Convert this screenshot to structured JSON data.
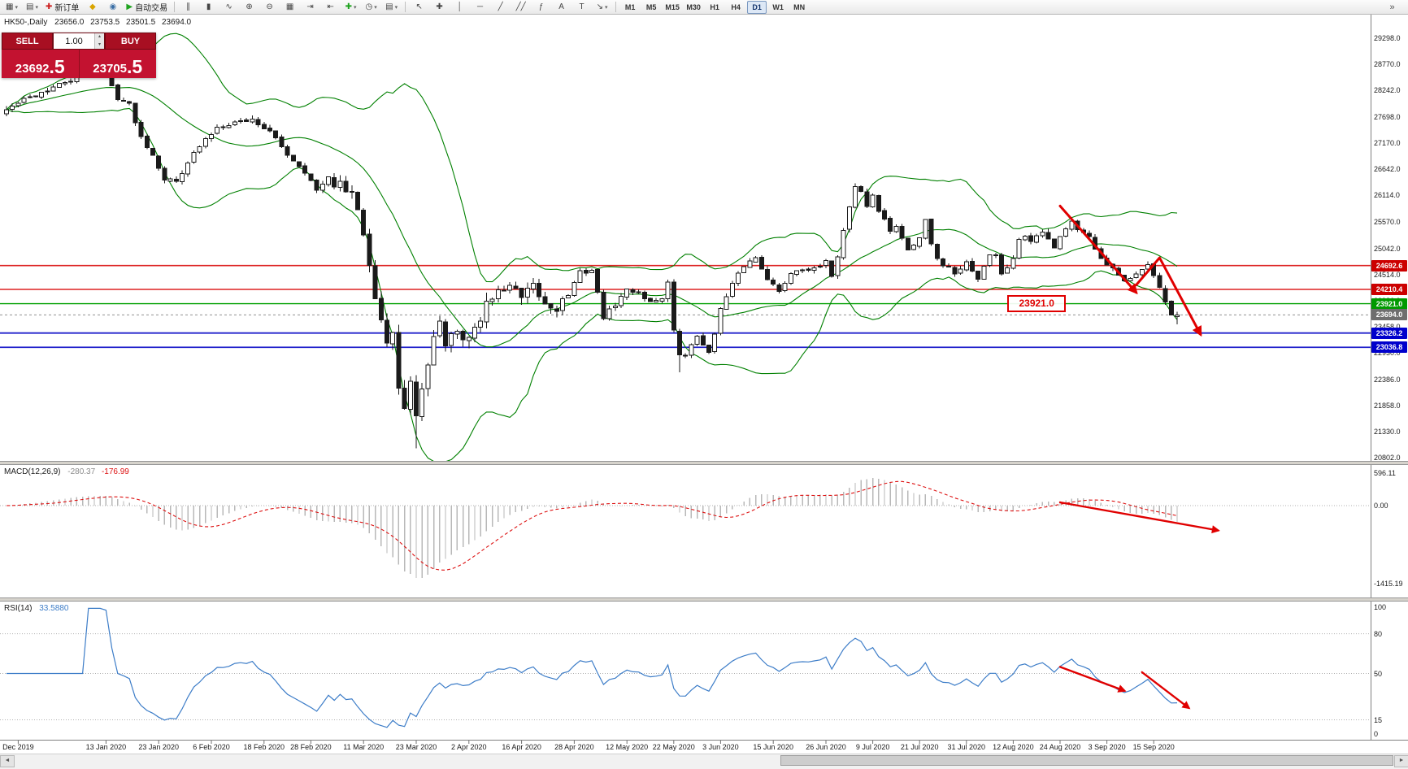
{
  "toolbar": {
    "groups": [
      {
        "name": "file-group",
        "items": [
          {
            "name": "new-chart-button",
            "glyph": "▦",
            "caret": true
          },
          {
            "name": "chart-profiles-button",
            "glyph": "▤",
            "caret": true
          },
          {
            "name": "new-order-button",
            "glyph": "✚",
            "glyph_color": "#cc2222",
            "label": "新订单"
          },
          {
            "name": "metaeditor-button",
            "glyph": "◆",
            "glyph_color": "#d9a400"
          },
          {
            "name": "data-window-button",
            "glyph": "◉",
            "glyph_color": "#3a6ea5"
          },
          {
            "name": "autotrading-button",
            "glyph": "▶",
            "glyph_color": "#1fa31f",
            "label": "自动交易"
          }
        ]
      },
      {
        "name": "chart-tools-group",
        "items": [
          {
            "name": "bar-chart-button",
            "glyph": "∥"
          },
          {
            "name": "candlestick-chart-button",
            "glyph": "▮"
          },
          {
            "name": "line-chart-button",
            "glyph": "∿"
          },
          {
            "name": "zoom-in-button",
            "glyph": "⊕"
          },
          {
            "name": "zoom-out-button",
            "glyph": "⊖"
          },
          {
            "name": "tile-windows-button",
            "glyph": "▦"
          },
          {
            "name": "auto-scroll-button",
            "glyph": "⇥"
          },
          {
            "name": "chart-shift-button",
            "glyph": "⇤"
          },
          {
            "name": "indicators-button",
            "glyph": "✚",
            "glyph_color": "#1fa31f",
            "caret": true
          },
          {
            "name": "periods-button",
            "glyph": "◷",
            "caret": true
          },
          {
            "name": "templates-button",
            "glyph": "▤",
            "caret": true
          }
        ]
      },
      {
        "name": "drawing-tools-group",
        "items": [
          {
            "name": "cursor-button",
            "glyph": "↖"
          },
          {
            "name": "crosshair-button",
            "glyph": "✚"
          },
          {
            "name": "vertical-line-button",
            "glyph": "│"
          },
          {
            "name": "horizontal-line-button",
            "glyph": "─"
          },
          {
            "name": "trendline-button",
            "glyph": "╱"
          },
          {
            "name": "channel-button",
            "glyph": "╱╱"
          },
          {
            "name": "fibonacci-button",
            "glyph": "ƒ"
          },
          {
            "name": "text-button",
            "glyph": "A"
          },
          {
            "name": "label-button",
            "glyph": "T"
          },
          {
            "name": "arrows-button",
            "glyph": "↘",
            "caret": true
          }
        ]
      },
      {
        "name": "timeframes-group",
        "items": [
          {
            "name": "timeframe-m1",
            "label": "M1"
          },
          {
            "name": "timeframe-m5",
            "label": "M5"
          },
          {
            "name": "timeframe-m15",
            "label": "M15"
          },
          {
            "name": "timeframe-m30",
            "label": "M30"
          },
          {
            "name": "timeframe-h1",
            "label": "H1"
          },
          {
            "name": "timeframe-h4",
            "label": "H4"
          },
          {
            "name": "timeframe-d1",
            "label": "D1",
            "active": true
          },
          {
            "name": "timeframe-w1",
            "label": "W1"
          },
          {
            "name": "timeframe-mn",
            "label": "MN"
          }
        ]
      }
    ],
    "overflow_glyph": "»"
  },
  "header": {
    "symbol_period": "HK50-,Daily",
    "open": "23656.0",
    "high": "23753.5",
    "low": "23501.5",
    "close": "23694.0"
  },
  "trade_panel": {
    "sell_label": "SELL",
    "buy_label": "BUY",
    "volume": "1.00",
    "sell_price_main": "23692",
    "sell_price_frac": ".5",
    "buy_price_main": "23705",
    "buy_price_frac": ".5"
  },
  "macd_header": {
    "title": "MACD(12,26,9)",
    "main": "-280.37",
    "signal": "-176.99"
  },
  "rsi_header": {
    "title": "RSI(14)",
    "value": "33.5880"
  },
  "chart_data": {
    "type": "candlestick",
    "symbol": "HK50-",
    "period": "Daily",
    "last_ohlc": {
      "open": 23656.0,
      "high": 23753.5,
      "low": 23501.5,
      "close": 23694.0
    },
    "bid": 23692.5,
    "ask": 23705.5,
    "y_axis": {
      "top": 29298.0,
      "bottom": 20802.0,
      "labels": [
        "29298.0",
        "28770.0",
        "28242.0",
        "27698.0",
        "27170.0",
        "26642.0",
        "26114.0",
        "25570.0",
        "25042.0",
        "24514.0",
        "23986.0",
        "23458.0",
        "22930.0",
        "22386.0",
        "21858.0",
        "21330.0",
        "20802.0"
      ]
    },
    "x_axis": [
      [
        "Dec 2019",
        2
      ],
      [
        "13 Jan 2020",
        17
      ],
      [
        "23 Jan 2020",
        26
      ],
      [
        "6 Feb 2020",
        35
      ],
      [
        "18 Feb 2020",
        44
      ],
      [
        "28 Feb 2020",
        52
      ],
      [
        "11 Mar 2020",
        61
      ],
      [
        "23 Mar 2020",
        70
      ],
      [
        "2 Apr 2020",
        79
      ],
      [
        "16 Apr 2020",
        88
      ],
      [
        "28 Apr 2020",
        97
      ],
      [
        "12 May 2020",
        106
      ],
      [
        "22 May 2020",
        114
      ],
      [
        "3 Jun 2020",
        122
      ],
      [
        "15 Jun 2020",
        131
      ],
      [
        "26 Jun 2020",
        140
      ],
      [
        "9 Jul 2020",
        148
      ],
      [
        "21 Jul 2020",
        156
      ],
      [
        "31 Jul 2020",
        164
      ],
      [
        "12 Aug 2020",
        172
      ],
      [
        "24 Aug 2020",
        180
      ],
      [
        "3 Sep 2020",
        188
      ],
      [
        "15 Sep 2020",
        196
      ]
    ],
    "close_anchors": [
      [
        0,
        27850
      ],
      [
        3,
        28050
      ],
      [
        6,
        28200
      ],
      [
        9,
        28350
      ],
      [
        12,
        28500
      ],
      [
        15,
        28600
      ],
      [
        17,
        28550
      ],
      [
        19,
        28100
      ],
      [
        21,
        27950
      ],
      [
        23,
        27300
      ],
      [
        25,
        26950
      ],
      [
        27,
        26450
      ],
      [
        29,
        26400
      ],
      [
        31,
        26800
      ],
      [
        33,
        27100
      ],
      [
        36,
        27500
      ],
      [
        39,
        27600
      ],
      [
        42,
        27650
      ],
      [
        45,
        27400
      ],
      [
        48,
        26950
      ],
      [
        51,
        26600
      ],
      [
        53,
        26200
      ],
      [
        55,
        26450
      ],
      [
        57,
        26300
      ],
      [
        59,
        26100
      ],
      [
        60,
        25900
      ],
      [
        61,
        25400
      ],
      [
        62,
        24800
      ],
      [
        63,
        24050
      ],
      [
        64,
        23600
      ],
      [
        65,
        23100
      ],
      [
        66,
        23250
      ],
      [
        67,
        22300
      ],
      [
        68,
        21750
      ],
      [
        69,
        22250
      ],
      [
        70,
        21700
      ],
      [
        71,
        22150
      ],
      [
        72,
        22750
      ],
      [
        73,
        23250
      ],
      [
        74,
        23500
      ],
      [
        75,
        23150
      ],
      [
        76,
        23200
      ],
      [
        77,
        23350
      ],
      [
        78,
        23100
      ],
      [
        79,
        23250
      ],
      [
        81,
        23600
      ],
      [
        82,
        23950
      ],
      [
        84,
        24150
      ],
      [
        86,
        24300
      ],
      [
        88,
        24000
      ],
      [
        90,
        24250
      ],
      [
        92,
        23900
      ],
      [
        94,
        23850
      ],
      [
        96,
        24100
      ],
      [
        98,
        24550
      ],
      [
        100,
        24600
      ],
      [
        102,
        23650
      ],
      [
        104,
        23900
      ],
      [
        106,
        24200
      ],
      [
        108,
        24150
      ],
      [
        110,
        23950
      ],
      [
        112,
        24050
      ],
      [
        113,
        24350
      ],
      [
        114,
        23350
      ],
      [
        115,
        22900
      ],
      [
        116,
        22850
      ],
      [
        117,
        23100
      ],
      [
        118,
        23300
      ],
      [
        119,
        23050
      ],
      [
        120,
        22950
      ],
      [
        121,
        23350
      ],
      [
        122,
        23800
      ],
      [
        124,
        24300
      ],
      [
        126,
        24700
      ],
      [
        128,
        24850
      ],
      [
        130,
        24450
      ],
      [
        131,
        24300
      ],
      [
        132,
        24150
      ],
      [
        134,
        24550
      ],
      [
        136,
        24650
      ],
      [
        138,
        24600
      ],
      [
        140,
        24750
      ],
      [
        141,
        24500
      ],
      [
        142,
        24900
      ],
      [
        143,
        25400
      ],
      [
        144,
        25900
      ],
      [
        145,
        26300
      ],
      [
        146,
        26200
      ],
      [
        147,
        25900
      ],
      [
        148,
        26100
      ],
      [
        149,
        25800
      ],
      [
        150,
        25650
      ],
      [
        151,
        25350
      ],
      [
        152,
        25500
      ],
      [
        153,
        25250
      ],
      [
        154,
        25000
      ],
      [
        155,
        25100
      ],
      [
        156,
        25250
      ],
      [
        157,
        25650
      ],
      [
        158,
        25150
      ],
      [
        159,
        24850
      ],
      [
        160,
        24700
      ],
      [
        161,
        24650
      ],
      [
        162,
        24550
      ],
      [
        163,
        24650
      ],
      [
        164,
        24750
      ],
      [
        165,
        24600
      ],
      [
        166,
        24450
      ],
      [
        167,
        24700
      ],
      [
        168,
        24950
      ],
      [
        169,
        24900
      ],
      [
        170,
        24550
      ],
      [
        171,
        24650
      ],
      [
        172,
        24850
      ],
      [
        173,
        25200
      ],
      [
        174,
        25250
      ],
      [
        175,
        25150
      ],
      [
        176,
        25300
      ],
      [
        177,
        25400
      ],
      [
        178,
        25200
      ],
      [
        179,
        25050
      ],
      [
        180,
        25250
      ],
      [
        181,
        25400
      ],
      [
        182,
        25600
      ],
      [
        183,
        25450
      ],
      [
        184,
        25350
      ],
      [
        185,
        25250
      ],
      [
        186,
        25050
      ],
      [
        187,
        24850
      ],
      [
        188,
        24700
      ],
      [
        189,
        24600
      ],
      [
        190,
        24500
      ],
      [
        191,
        24350
      ],
      [
        192,
        24400
      ],
      [
        193,
        24500
      ],
      [
        194,
        24650
      ],
      [
        195,
        24750
      ],
      [
        196,
        24500
      ],
      [
        197,
        24250
      ],
      [
        198,
        23950
      ],
      [
        199,
        23680
      ],
      [
        200,
        23694
      ]
    ],
    "levels": [
      {
        "name": "resistance-line-1",
        "price": 24692.6,
        "label": "24692.6",
        "color": "#dd2222",
        "label_bg": "#cc0000",
        "width": 1.6
      },
      {
        "name": "resistance-line-2",
        "price": 24210.4,
        "label": "24210.4",
        "color": "#dd2222",
        "label_bg": "#cc0000",
        "width": 1.6
      },
      {
        "name": "pivot-line",
        "price": 23921.0,
        "label": "23921.0",
        "color": "#00a000",
        "label_bg": "#009a00",
        "width": 1.4
      },
      {
        "name": "support-line-1",
        "price": 23326.2,
        "label": "23326.2",
        "color": "#2222cc",
        "label_bg": "#0000cc",
        "width": 1.8
      },
      {
        "name": "support-line-2",
        "price": 23036.8,
        "label": "23036.8",
        "color": "#2222cc",
        "label_bg": "#0000cc",
        "width": 1.8
      }
    ],
    "current_price_line": {
      "price": 23694.0,
      "label": "23694.0",
      "color": "#909090",
      "label_bg": "#6e6e6e"
    },
    "indicators": {
      "bollinger": {
        "period": 20,
        "deviation": 2,
        "color": "#008000"
      },
      "macd": {
        "params": "12,26,9",
        "main": -280.37,
        "signal": -176.99,
        "hist_color": "#b8b8b8",
        "signal_color": "#dd1111"
      },
      "rsi": {
        "period": 14,
        "value": 33.588,
        "color": "#3d7dc8",
        "levels": [
          80,
          50,
          15
        ]
      }
    },
    "macd_axis": [
      {
        "v": 596.11,
        "label": "596.11"
      },
      {
        "v": 0,
        "label": "0.00"
      },
      {
        "v": -1415.19,
        "label": "-1415.19"
      }
    ],
    "rsi_axis": [
      {
        "v": 100,
        "label": "100"
      },
      {
        "v": 80,
        "label": "80"
      },
      {
        "v": 50,
        "label": "50"
      },
      {
        "v": 15,
        "label": "15"
      },
      {
        "v": 0,
        "label": "0"
      }
    ],
    "annotations": {
      "color": "#e00000",
      "price_label": {
        "text": "23921.0",
        "idx": 176,
        "price": 23921.0
      },
      "price_arrows": [
        [
          [
            180,
            25900
          ],
          [
            193,
            24150
          ]
        ],
        [
          [
            193,
            24300
          ],
          [
            197,
            24850
          ],
          [
            204,
            23300
          ]
        ]
      ],
      "macd_arrows": [
        [
          [
            180,
            60
          ],
          [
            207,
            -450
          ]
        ]
      ],
      "rsi_arrows": [
        [
          [
            180,
            55
          ],
          [
            191,
            37
          ]
        ],
        [
          [
            194,
            51
          ],
          [
            202,
            24
          ]
        ]
      ]
    }
  }
}
